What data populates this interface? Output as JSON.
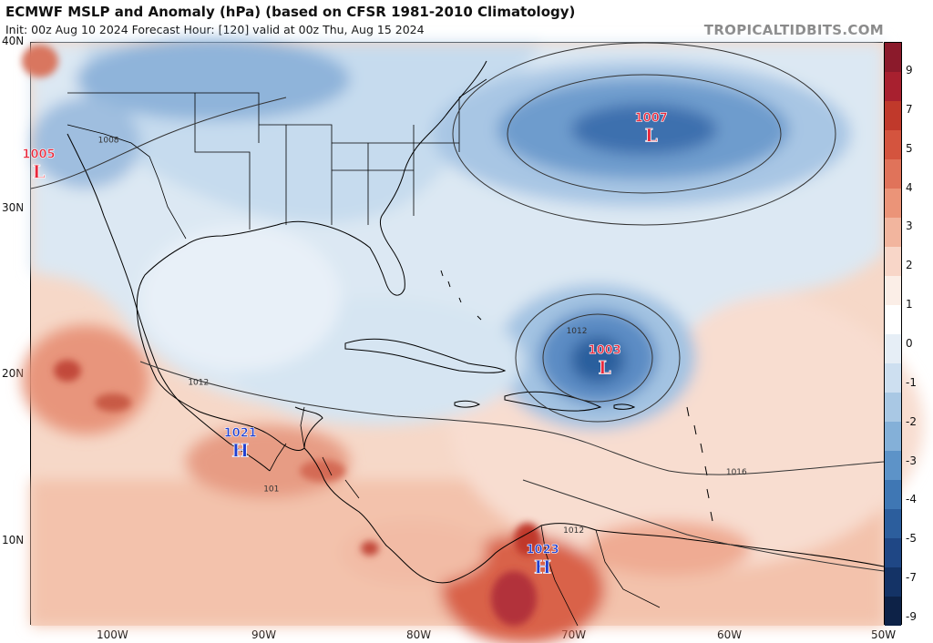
{
  "header": {
    "title": "ECMWF MSLP and Anomaly (hPa) (based on CFSR 1981-2010 Climatology)",
    "subtitle": "Init: 00z Aug 10 2024   Forecast Hour: [120]   valid at 00z Thu, Aug 15 2024",
    "watermark": "TROPICALTIDBITS.COM"
  },
  "axes": {
    "lat_labels": [
      "40N",
      "30N",
      "20N",
      "10N"
    ],
    "lon_labels": [
      "100W",
      "90W",
      "80W",
      "70W",
      "60W",
      "50W"
    ]
  },
  "colorbar": {
    "labels": [
      "9",
      "7",
      "5",
      "4",
      "3",
      "2",
      "1",
      "0",
      "-1",
      "-2",
      "-3",
      "-4",
      "-5",
      "-7",
      "-9"
    ],
    "colors": [
      "#8b1a2b",
      "#a8202f",
      "#c0392b",
      "#d4543e",
      "#e0735a",
      "#eb9478",
      "#f2b59e",
      "#f8d6c8",
      "#fbeee7",
      "#ffffff",
      "#e6eef6",
      "#cddff0",
      "#a9c8e4",
      "#84b0d8",
      "#5d93c8",
      "#3f77b4",
      "#2c5e9d",
      "#1f4785",
      "#143366",
      "#0d2247"
    ]
  },
  "pressure_centers": [
    {
      "letter": "L",
      "value": "1007",
      "lon": -65.0,
      "lat": 35.0,
      "type": "low"
    },
    {
      "letter": "L",
      "value": "1005",
      "lon": -104.5,
      "lat": 32.8,
      "type": "low"
    },
    {
      "letter": "L",
      "value": "1003",
      "lon": -68.0,
      "lat": 21.0,
      "type": "low"
    },
    {
      "letter": "H",
      "value": "1021",
      "lon": -91.5,
      "lat": 16.0,
      "type": "high"
    },
    {
      "letter": "H",
      "value": "1023",
      "lon": -72.0,
      "lat": 9.0,
      "type": "high"
    }
  ],
  "isobar_labels": [
    {
      "text": "1008",
      "lon": -100.0,
      "lat": 34.5
    },
    {
      "text": "1012",
      "lon": -94.2,
      "lat": 19.9
    },
    {
      "text": "1012",
      "lon": -69.8,
      "lat": 23.0
    },
    {
      "text": "1016",
      "lon": -59.5,
      "lat": 14.5
    },
    {
      "text": "1012",
      "lon": -70.0,
      "lat": 11.0
    },
    {
      "text": "101",
      "lon": -89.5,
      "lat": 13.5
    }
  ],
  "colors": {
    "low_marker": "#e8283c",
    "high_marker": "#1f3fd0"
  }
}
